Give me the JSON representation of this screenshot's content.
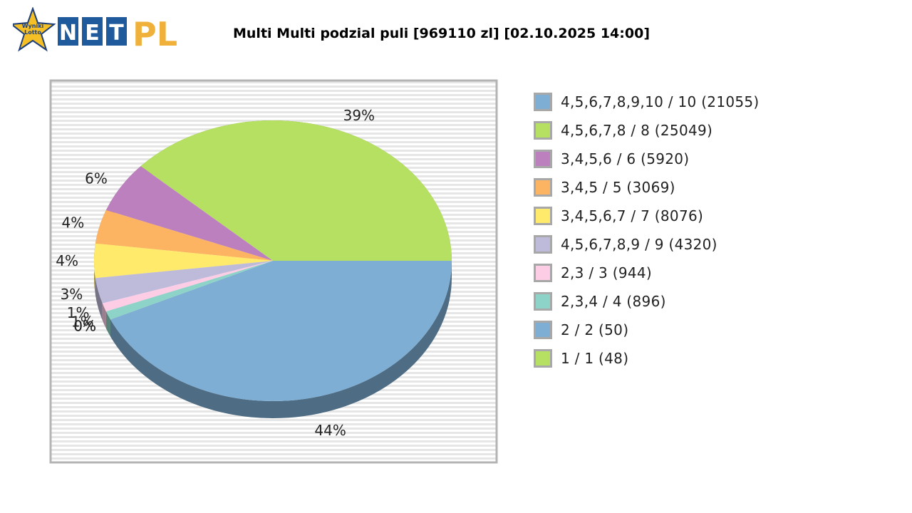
{
  "logo": {
    "badge_text_1": "Wyniki",
    "badge_text_2": "Lotto",
    "letters": [
      "N",
      "E",
      "T"
    ],
    "suffix": "PL"
  },
  "chart_data": {
    "type": "pie",
    "title": "Multi Multi podzial puli [969110 zl] [02.10.2025 14:00]",
    "slices": [
      {
        "label": "4,5,6,7,8,9,10 / 10 (21055)",
        "percent": 44,
        "value_label": "44%",
        "color": "#7eaed3"
      },
      {
        "label": "4,5,6,7,8 / 8 (25049)",
        "percent": 39,
        "value_label": "39%",
        "color": "#b5e061"
      },
      {
        "label": "3,4,5,6 / 6 (5920)",
        "percent": 6,
        "value_label": "6%",
        "color": "#bd80bf"
      },
      {
        "label": "3,4,5 / 5 (3069)",
        "percent": 4,
        "value_label": "4%",
        "color": "#fdb462"
      },
      {
        "label": "3,4,5,6,7 / 7 (8076)",
        "percent": 4,
        "value_label": "4%",
        "color": "#ffea6b"
      },
      {
        "label": "4,5,6,7,8,9 / 9 (4320)",
        "percent": 3,
        "value_label": "3%",
        "color": "#bebada"
      },
      {
        "label": "2,3 / 3 (944)",
        "percent": 1,
        "value_label": "1%",
        "color": "#fccde5"
      },
      {
        "label": "2,3,4 / 4 (896)",
        "percent": 1,
        "value_label": "1%",
        "color": "#8dd3c7"
      },
      {
        "label": "2 / 2 (50)",
        "percent": 0,
        "value_label": "0%",
        "color": "#7eaed3"
      },
      {
        "label": "1 / 1 (48)",
        "percent": 0,
        "value_label": "0%",
        "color": "#b5e061"
      }
    ],
    "legend": "right"
  }
}
